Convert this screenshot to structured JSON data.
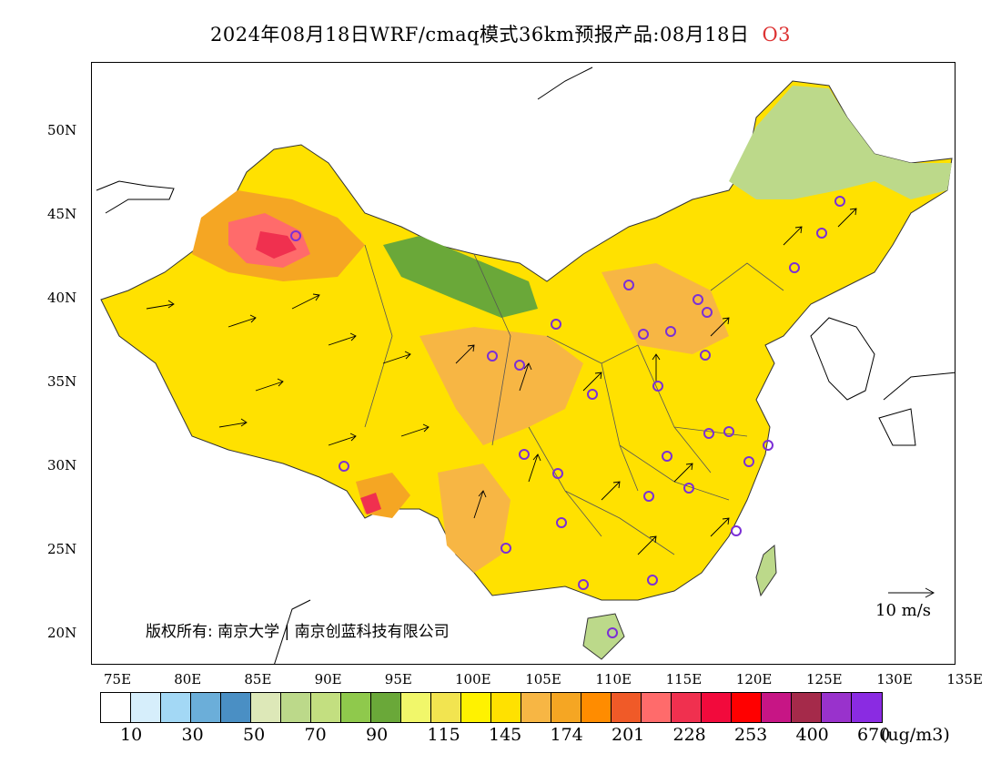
{
  "title": {
    "main": "2024年08月18日WRF/cmaq模式36km预报产品:08月18日",
    "species": "O3",
    "species_color": "#dd3333"
  },
  "map": {
    "lon_ticks": [
      "75E",
      "80E",
      "85E",
      "90E",
      "95E",
      "100E",
      "105E",
      "110E",
      "115E",
      "120E",
      "125E",
      "130E",
      "135E"
    ],
    "lat_ticks": [
      "50N",
      "45N",
      "40N",
      "35N",
      "30N",
      "25N",
      "20N"
    ],
    "copyright": "版权所有: 南京大学 | 南京创蓝科技有限公司",
    "wind_reference": "10 m/s"
  },
  "colorbar": {
    "colors": [
      "#ffffff",
      "#d6eefb",
      "#a3d8f5",
      "#6baed9",
      "#4a8fc4",
      "#dde8b8",
      "#bcd98a",
      "#c3df80",
      "#8fc94c",
      "#6aa839",
      "#f1f76a",
      "#f2e450",
      "#fff200",
      "#ffe100",
      "#f7b644",
      "#f5a623",
      "#ff8c00",
      "#f05a28",
      "#ff6b6b",
      "#f0304f",
      "#f20a3c",
      "#ff0000",
      "#c71585",
      "#a52a4a",
      "#9932cc",
      "#8a2be2"
    ],
    "labels": [
      "10",
      "30",
      "50",
      "70",
      "90",
      "115",
      "145",
      "174",
      "201",
      "228",
      "253",
      "400",
      "670"
    ],
    "unit": "(ug/m3)"
  },
  "cities_note": ""
}
